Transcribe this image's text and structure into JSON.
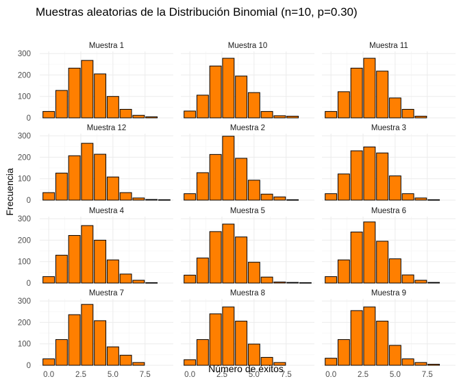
{
  "chart_data": {
    "type": "bar",
    "title": "Muestras aleatorias de la Distribución Binomial (n=10, p=0.30)",
    "xlabel": "Número de éxitos",
    "ylabel": "Frecuencia",
    "x": [
      0,
      1,
      2,
      3,
      4,
      5,
      6,
      7,
      8,
      9
    ],
    "xlim": [
      -0.7,
      9.7
    ],
    "ylim": [
      0,
      310
    ],
    "x_ticks": [
      "0.0",
      "2.5",
      "5.0",
      "7.5"
    ],
    "x_tick_values": [
      0,
      2.5,
      5,
      7.5
    ],
    "y_ticks": [
      "0",
      "100",
      "200",
      "300"
    ],
    "y_tick_values": [
      0,
      100,
      200,
      300
    ],
    "grid": true,
    "bar_color": "#ff7f00",
    "bar_edge_color": "#000000",
    "panels": [
      {
        "name": "Muestra 1",
        "values": [
          30,
          128,
          232,
          268,
          205,
          100,
          40,
          12,
          5,
          0
        ]
      },
      {
        "name": "Muestra 10",
        "values": [
          32,
          106,
          242,
          278,
          195,
          118,
          30,
          10,
          8,
          0
        ]
      },
      {
        "name": "Muestra 11",
        "values": [
          30,
          122,
          232,
          278,
          218,
          93,
          40,
          8,
          0,
          0
        ]
      },
      {
        "name": "Muestra 12",
        "values": [
          35,
          126,
          207,
          265,
          214,
          108,
          35,
          10,
          3,
          2
        ]
      },
      {
        "name": "Muestra 2",
        "values": [
          30,
          128,
          213,
          298,
          195,
          93,
          28,
          15,
          2,
          0
        ]
      },
      {
        "name": "Muestra 3",
        "values": [
          30,
          122,
          230,
          248,
          220,
          113,
          30,
          10,
          2,
          0
        ]
      },
      {
        "name": "Muestra 4",
        "values": [
          30,
          130,
          222,
          268,
          200,
          108,
          42,
          13,
          2,
          0
        ]
      },
      {
        "name": "Muestra 5",
        "values": [
          37,
          117,
          240,
          275,
          215,
          97,
          28,
          5,
          3,
          2
        ]
      },
      {
        "name": "Muestra 6",
        "values": [
          30,
          108,
          238,
          285,
          195,
          113,
          38,
          13,
          3,
          0
        ]
      },
      {
        "name": "Muestra 7",
        "values": [
          30,
          120,
          236,
          284,
          208,
          86,
          47,
          13,
          0,
          0
        ]
      },
      {
        "name": "Muestra 8",
        "values": [
          26,
          120,
          240,
          272,
          206,
          99,
          37,
          13,
          0,
          0
        ]
      },
      {
        "name": "Muestra 9",
        "values": [
          33,
          120,
          255,
          272,
          206,
          93,
          30,
          13,
          5,
          0
        ]
      }
    ]
  }
}
